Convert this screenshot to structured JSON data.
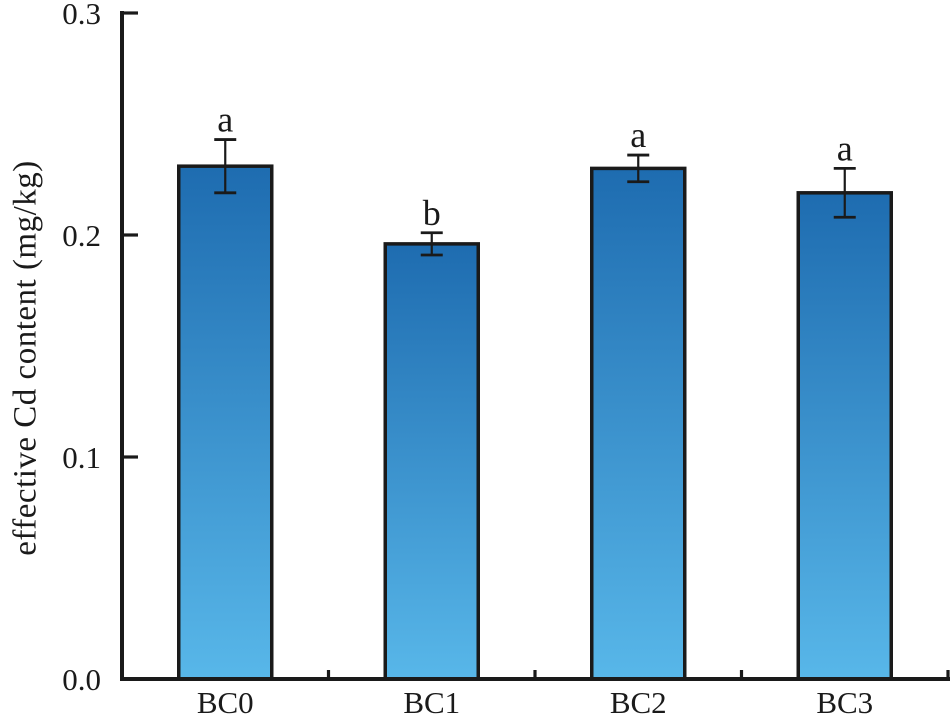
{
  "chart_data": {
    "type": "bar",
    "title": "",
    "ylabel": "effective Cd content (mg/kg)",
    "xlabel": "",
    "categories": [
      "BC0",
      "BC1",
      "BC2",
      "BC3"
    ],
    "values": [
      0.231,
      0.196,
      0.23,
      0.219
    ],
    "errors": [
      0.012,
      0.005,
      0.006,
      0.011
    ],
    "sig_letters": [
      "a",
      "b",
      "a",
      "a"
    ],
    "ylim": [
      0,
      0.3
    ],
    "yticks": [
      0,
      0.1,
      0.2,
      0.3
    ],
    "ytick_labels": [
      "0.0",
      "0.1",
      "0.2",
      "0.3"
    ],
    "grid": false,
    "legend_position": "none",
    "colors": {
      "bar_gradient_top": "#1e6cb0",
      "bar_gradient_bottom": "#58b7e9",
      "bar_border": "#1a1a1a",
      "axis": "#1a1a1a",
      "error_bar": "#1a1a1a",
      "text": "#1a1a1a",
      "background": "#ffffff"
    }
  }
}
